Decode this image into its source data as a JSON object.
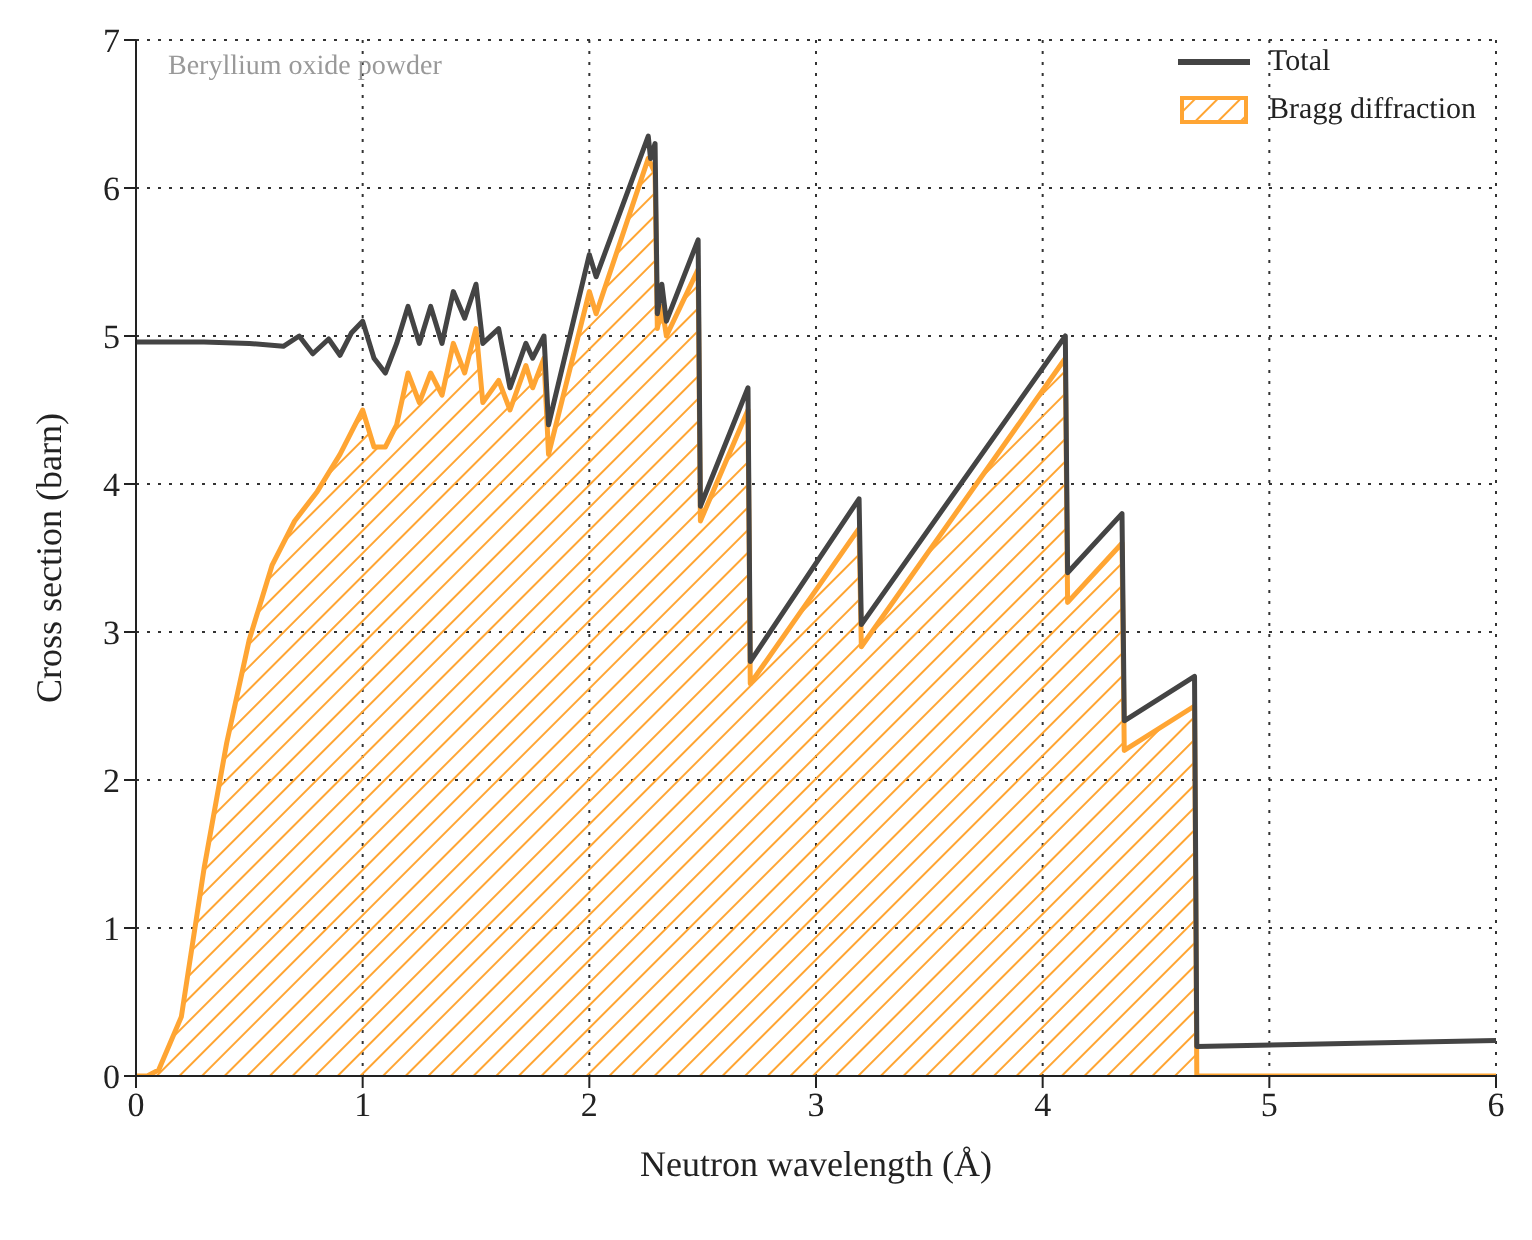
{
  "chart_data": {
    "type": "line",
    "annotations": [
      "Beryllium oxide powder"
    ],
    "xlabel": "Neutron wavelength (Å)",
    "ylabel": "Cross section (barn)",
    "xlim": [
      0,
      6
    ],
    "xticks": [
      0,
      1,
      2,
      3,
      4,
      5,
      6
    ],
    "ylim": [
      0,
      7
    ],
    "yticks": [
      0,
      1,
      2,
      3,
      4,
      5,
      6,
      7
    ],
    "grid": true,
    "legend": "top right",
    "marker": "none",
    "line_style": "solid",
    "series": [
      {
        "name": "Total",
        "type": "line",
        "color": "#444444",
        "x": [
          0,
          0.3,
          0.5,
          0.65,
          0.72,
          0.78,
          0.85,
          0.9,
          0.95,
          1.0,
          1.05,
          1.1,
          1.15,
          1.2,
          1.25,
          1.3,
          1.35,
          1.4,
          1.45,
          1.5,
          1.53,
          1.6,
          1.65,
          1.72,
          1.75,
          1.8,
          1.82,
          2.0,
          2.03,
          2.26,
          2.27,
          2.29,
          2.3,
          2.32,
          2.34,
          2.48,
          2.49,
          2.7,
          2.71,
          3.19,
          3.2,
          4.1,
          4.11,
          4.35,
          4.36,
          4.67,
          4.68,
          6.0
        ],
        "values": [
          4.96,
          4.96,
          4.95,
          4.93,
          5.0,
          4.88,
          4.98,
          4.87,
          5.02,
          5.1,
          4.85,
          4.75,
          4.95,
          5.2,
          4.95,
          5.2,
          4.95,
          5.3,
          5.12,
          5.35,
          4.95,
          5.05,
          4.65,
          4.95,
          4.85,
          5.0,
          4.4,
          5.55,
          5.4,
          6.35,
          6.2,
          6.3,
          5.15,
          5.35,
          5.1,
          5.65,
          3.85,
          4.65,
          2.8,
          3.9,
          3.05,
          5.0,
          3.4,
          3.8,
          2.4,
          2.7,
          0.2,
          0.24
        ]
      },
      {
        "name": "Bragg diffraction",
        "type": "area",
        "color": "#ffa533",
        "x": [
          0,
          0.05,
          0.1,
          0.2,
          0.3,
          0.4,
          0.5,
          0.6,
          0.7,
          0.8,
          0.9,
          0.95,
          1.0,
          1.05,
          1.1,
          1.15,
          1.2,
          1.25,
          1.3,
          1.35,
          1.4,
          1.45,
          1.5,
          1.53,
          1.6,
          1.65,
          1.72,
          1.75,
          1.8,
          1.82,
          2.0,
          2.03,
          2.26,
          2.29,
          2.3,
          2.32,
          2.34,
          2.48,
          2.49,
          2.7,
          2.71,
          3.19,
          3.2,
          4.1,
          4.11,
          4.35,
          4.36,
          4.67,
          4.68,
          6.0
        ],
        "values": [
          0,
          0,
          0.04,
          0.4,
          1.4,
          2.25,
          2.95,
          3.45,
          3.75,
          3.95,
          4.2,
          4.35,
          4.5,
          4.25,
          4.25,
          4.4,
          4.75,
          4.55,
          4.75,
          4.6,
          4.95,
          4.75,
          5.05,
          4.55,
          4.7,
          4.5,
          4.8,
          4.65,
          4.85,
          4.2,
          5.3,
          5.15,
          6.2,
          6.1,
          5.05,
          5.2,
          5.0,
          5.45,
          3.75,
          4.5,
          2.65,
          3.7,
          2.9,
          4.85,
          3.2,
          3.6,
          2.2,
          2.5,
          0,
          0
        ]
      }
    ]
  }
}
